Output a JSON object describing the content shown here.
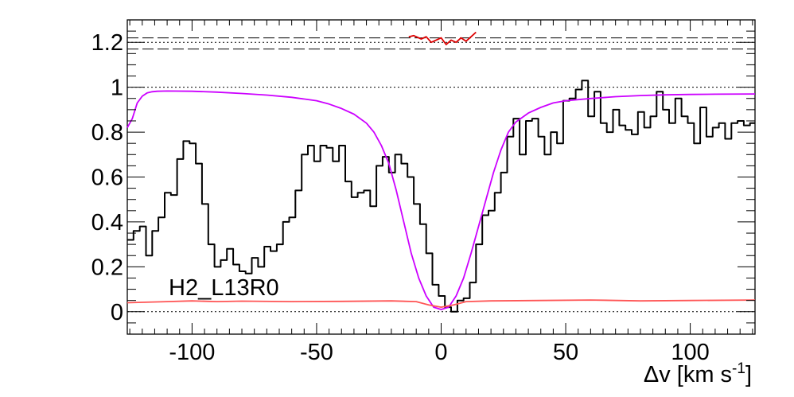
{
  "chart_data": {
    "type": "line",
    "title": "",
    "xlabel": "Δv [km s",
    "xlabel_sup": "-1",
    "xlabel_close": "]",
    "ylabel": "",
    "xlim": [
      -126,
      126
    ],
    "ylim": [
      -0.1,
      1.3
    ],
    "x_ticks": [
      -100,
      -50,
      0,
      50,
      100
    ],
    "x_tick_labels": [
      "-100",
      "-50",
      "0",
      "50",
      "100"
    ],
    "y_ticks": [
      0,
      0.2,
      0.4,
      0.6,
      0.8,
      1,
      1.2
    ],
    "y_tick_labels": [
      "0",
      "0.2",
      "0.4",
      "0.6",
      "0.8",
      "1",
      "1.2"
    ],
    "annotation": "H2_L13R0",
    "grid": false,
    "reference_lines": {
      "dotted": [
        0,
        1,
        1.2
      ],
      "dashed": [
        1.17,
        1.22
      ]
    },
    "colors": {
      "spectrum": "#000000",
      "model": "#cc00ff",
      "error": "#ff5555",
      "residual": "#dd0000"
    },
    "series": [
      {
        "style": "step",
        "color": "#000000",
        "x": [
          -126,
          -123.5,
          -121,
          -118.5,
          -116,
          -113.5,
          -111,
          -108.5,
          -106,
          -103.5,
          -101,
          -98.5,
          -96,
          -93.5,
          -91,
          -88.5,
          -86,
          -83.5,
          -81,
          -78.5,
          -76,
          -73.5,
          -71,
          -68.5,
          -66,
          -63.5,
          -61,
          -58.5,
          -56,
          -53.5,
          -51,
          -48.5,
          -46,
          -43.5,
          -41,
          -38.5,
          -36,
          -33.5,
          -31,
          -28.5,
          -26,
          -23.5,
          -21,
          -18.5,
          -16,
          -13.5,
          -11,
          -8.5,
          -6,
          -3.5,
          -1,
          1.5,
          4,
          6.5,
          9,
          11.5,
          14,
          16.5,
          19,
          21.5,
          24,
          26.5,
          29,
          31.5,
          34,
          36.5,
          39,
          41.5,
          44,
          46.5,
          49,
          51.5,
          54,
          56.5,
          59,
          61.5,
          64,
          66.5,
          69,
          71.5,
          74,
          76.5,
          79,
          81.5,
          84,
          86.5,
          89,
          91.5,
          94,
          96.5,
          99,
          101.5,
          104,
          106.5,
          109,
          111.5,
          114,
          116.5,
          119,
          121.5,
          124
        ],
        "y": [
          0.32,
          0.36,
          0.38,
          0.25,
          0.36,
          0.42,
          0.53,
          0.52,
          0.68,
          0.76,
          0.75,
          0.66,
          0.48,
          0.3,
          0.2,
          0.23,
          0.28,
          0.21,
          0.18,
          0.17,
          0.24,
          0.2,
          0.29,
          0.27,
          0.3,
          0.4,
          0.42,
          0.54,
          0.7,
          0.74,
          0.67,
          0.74,
          0.73,
          0.67,
          0.74,
          0.58,
          0.51,
          0.53,
          0.54,
          0.47,
          0.65,
          0.69,
          0.62,
          0.7,
          0.66,
          0.6,
          0.48,
          0.39,
          0.26,
          0.12,
          0.07,
          0.02,
          0.0,
          0.05,
          0.06,
          0.13,
          0.3,
          0.43,
          0.45,
          0.53,
          0.62,
          0.78,
          0.86,
          0.7,
          0.85,
          0.86,
          0.78,
          0.7,
          0.8,
          0.75,
          0.94,
          0.95,
          0.99,
          1.03,
          0.87,
          0.98,
          0.84,
          0.8,
          0.9,
          0.83,
          0.81,
          0.79,
          0.89,
          0.82,
          0.87,
          0.98,
          0.9,
          0.84,
          0.95,
          0.87,
          0.84,
          0.75,
          0.91,
          0.78,
          0.82,
          0.84,
          0.77,
          0.84,
          0.85,
          0.83,
          0.84
        ]
      },
      {
        "style": "line",
        "color": "#cc00ff",
        "x": [
          -126,
          -124,
          -122,
          -120,
          -118,
          -116,
          -114,
          -110,
          -100,
          -90,
          -80,
          -70,
          -60,
          -50,
          -45,
          -40,
          -35,
          -30,
          -27,
          -24,
          -21,
          -18,
          -15,
          -12,
          -9,
          -6,
          -3,
          0,
          3,
          6,
          9,
          12,
          15,
          18,
          21,
          24,
          27,
          30,
          35,
          40,
          45,
          50,
          60,
          70,
          80,
          90,
          100,
          110,
          126
        ],
        "y": [
          0.82,
          0.86,
          0.93,
          0.96,
          0.975,
          0.98,
          0.982,
          0.983,
          0.982,
          0.978,
          0.972,
          0.965,
          0.955,
          0.94,
          0.925,
          0.905,
          0.88,
          0.84,
          0.8,
          0.74,
          0.66,
          0.54,
          0.4,
          0.26,
          0.15,
          0.07,
          0.02,
          0.01,
          0.02,
          0.07,
          0.15,
          0.26,
          0.38,
          0.5,
          0.62,
          0.72,
          0.8,
          0.845,
          0.885,
          0.91,
          0.93,
          0.94,
          0.95,
          0.958,
          0.963,
          0.966,
          0.968,
          0.969,
          0.97
        ]
      },
      {
        "style": "line",
        "color": "#ff5555",
        "x": [
          -126,
          -110,
          -100,
          -90,
          -80,
          -60,
          -40,
          -20,
          -10,
          -5,
          0,
          5,
          10,
          20,
          40,
          60,
          80,
          100,
          126
        ],
        "y": [
          0.04,
          0.045,
          0.048,
          0.045,
          0.047,
          0.045,
          0.046,
          0.048,
          0.045,
          0.03,
          0.02,
          0.03,
          0.045,
          0.048,
          0.05,
          0.052,
          0.048,
          0.05,
          0.052
        ]
      },
      {
        "style": "line",
        "color": "#dd0000",
        "x": [
          -13,
          -11,
          -8,
          -6,
          -4,
          -2,
          0,
          2,
          4,
          6,
          8,
          10,
          12,
          14
        ],
        "y": [
          1.225,
          1.23,
          1.215,
          1.225,
          1.2,
          1.21,
          1.22,
          1.19,
          1.21,
          1.2,
          1.22,
          1.205,
          1.225,
          1.245
        ]
      }
    ]
  }
}
